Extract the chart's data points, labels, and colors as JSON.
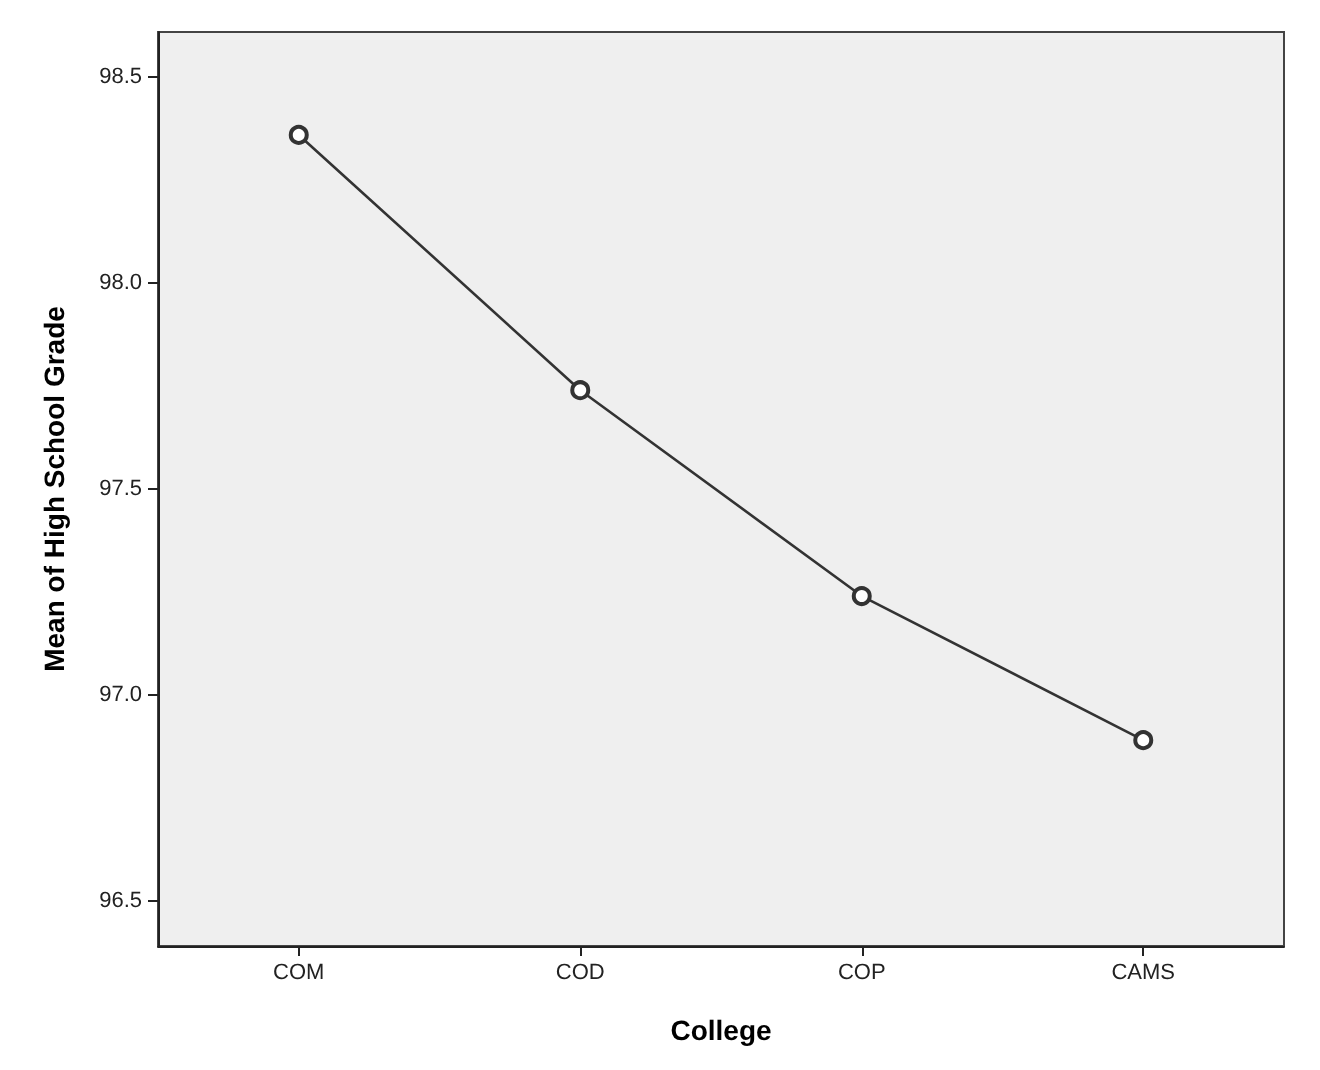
{
  "chart_data": {
    "type": "line",
    "xlabel": "College",
    "ylabel": "Mean of High School Grade",
    "categories": [
      "COM",
      "COD",
      "COP",
      "CAMS"
    ],
    "series": [
      {
        "color": "#333333",
        "values": [
          98.36,
          97.74,
          97.24,
          96.89
        ]
      }
    ],
    "ylim": [
      96.39,
      98.61
    ],
    "yticks": [
      {
        "value": 96.5,
        "label": "96.5"
      },
      {
        "value": 97.0,
        "label": "97.0"
      },
      {
        "value": 97.5,
        "label": "97.5"
      },
      {
        "value": 98.0,
        "label": "98.0"
      },
      {
        "value": 98.5,
        "label": "98.5"
      }
    ],
    "grid": false,
    "marker": "circle",
    "line_style": "solid"
  }
}
